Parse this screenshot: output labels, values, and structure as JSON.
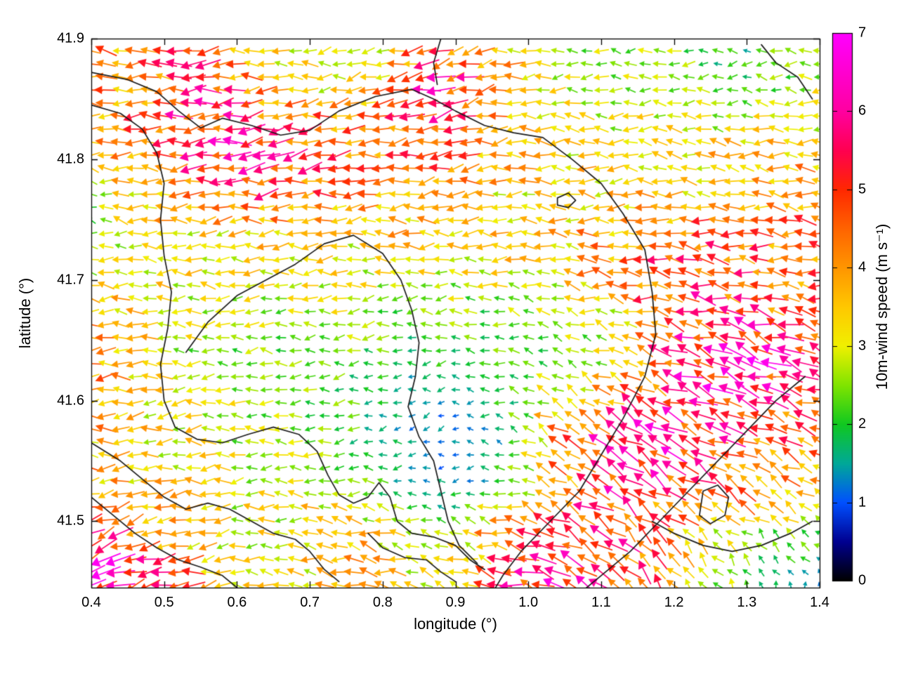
{
  "figure": {
    "xlabel": "longitude (°)",
    "ylabel": "latitude (°)",
    "colorbar_label": "10m-wind speed (m s⁻¹)"
  },
  "chart_data": {
    "type": "quiver",
    "title": "",
    "xlabel": "longitude (°)",
    "ylabel": "latitude (°)",
    "xlim": [
      0.4,
      1.4
    ],
    "ylim": [
      41.445,
      41.9
    ],
    "xticks": {
      "values": [
        0.4,
        0.5,
        0.6,
        0.7,
        0.8,
        0.9,
        1.0,
        1.1,
        1.2,
        1.3,
        1.4
      ],
      "labels": [
        "0.4",
        "0.5",
        "0.6",
        "0.7",
        "0.8",
        "0.9",
        "1.0",
        "1.1",
        "1.2",
        "1.3",
        "1.4"
      ]
    },
    "yticks": {
      "values": [
        41.5,
        41.6,
        41.7,
        41.8,
        41.9
      ],
      "labels": [
        "41.5",
        "41.6",
        "41.7",
        "41.8",
        "41.9"
      ]
    },
    "grid_visible": false,
    "legend": "none",
    "colorbar": {
      "label": "10m-wind speed (m s⁻¹)",
      "range": [
        0,
        7
      ],
      "tick_values": [
        0,
        1,
        2,
        3,
        4,
        5,
        6,
        7
      ],
      "tick_labels": [
        "0",
        "1",
        "2",
        "3",
        "4",
        "5",
        "6",
        "7"
      ],
      "position": "right"
    },
    "colormap_stops": [
      [
        0.0,
        "#000000"
      ],
      [
        0.5,
        "#000090"
      ],
      [
        1.0,
        "#0050ff"
      ],
      [
        1.5,
        "#00a898"
      ],
      [
        2.0,
        "#10c820"
      ],
      [
        2.5,
        "#80e400"
      ],
      [
        3.0,
        "#f0f000"
      ],
      [
        3.5,
        "#ffc800"
      ],
      [
        4.0,
        "#ff9600"
      ],
      [
        4.5,
        "#ff6400"
      ],
      [
        5.0,
        "#ff2800"
      ],
      [
        5.5,
        "#ff0050"
      ],
      [
        6.0,
        "#ff00a0"
      ],
      [
        7.0,
        "#ff00ff"
      ]
    ],
    "vector_grid": {
      "lon_start": 0.4,
      "lon_step": 0.02,
      "lon_count": 51,
      "lat_start": 41.447,
      "lat_step": 0.0108,
      "lat_count": 42
    },
    "wind_features_format": "[lon, lat, u_east_ms, v_north_ms]",
    "wind_features": [
      [
        0.44,
        41.88,
        -4.0,
        0.3
      ],
      [
        0.55,
        41.86,
        -5.2,
        -0.5
      ],
      [
        0.66,
        41.88,
        -3.2,
        0.0
      ],
      [
        0.75,
        41.895,
        -0.9,
        -0.3
      ],
      [
        0.8,
        41.875,
        -3.4,
        -0.6
      ],
      [
        0.9,
        41.87,
        -5.0,
        -1.6
      ],
      [
        0.87,
        41.845,
        -6.4,
        -1.5
      ],
      [
        1.0,
        41.88,
        -3.0,
        -0.3
      ],
      [
        1.1,
        41.88,
        -2.2,
        0.3
      ],
      [
        1.22,
        41.87,
        -2.8,
        0.0
      ],
      [
        1.27,
        41.893,
        -0.8,
        -0.4
      ],
      [
        1.33,
        41.86,
        -2.4,
        0.3
      ],
      [
        0.42,
        41.83,
        -3.6,
        0.5
      ],
      [
        0.52,
        41.82,
        -5.6,
        -0.8
      ],
      [
        0.62,
        41.8,
        -6.6,
        -1.0
      ],
      [
        0.72,
        41.8,
        -5.0,
        -0.6
      ],
      [
        0.85,
        41.8,
        -4.2,
        -0.5
      ],
      [
        1.0,
        41.8,
        -3.2,
        0.0
      ],
      [
        1.15,
        41.79,
        -3.0,
        0.0
      ],
      [
        1.3,
        41.79,
        -3.4,
        0.3
      ],
      [
        0.47,
        41.78,
        -4.5,
        0.0
      ],
      [
        0.4,
        41.76,
        -1.5,
        0.8
      ],
      [
        0.405,
        41.73,
        -0.9,
        0.4
      ],
      [
        0.43,
        41.71,
        -4.2,
        0.0
      ],
      [
        0.55,
        41.74,
        -3.0,
        0.0
      ],
      [
        0.68,
        41.74,
        -3.4,
        -0.2
      ],
      [
        0.82,
        41.73,
        -3.6,
        0.0
      ],
      [
        0.95,
        41.73,
        -3.2,
        0.2
      ],
      [
        1.1,
        41.72,
        -4.0,
        0.2
      ],
      [
        1.2,
        41.71,
        -5.4,
        0.4
      ],
      [
        1.33,
        41.72,
        -4.6,
        0.6
      ],
      [
        1.38,
        41.76,
        -4.2,
        0.3
      ],
      [
        0.57,
        41.7,
        -2.8,
        0.2
      ],
      [
        0.75,
        41.69,
        -2.8,
        0.0
      ],
      [
        0.42,
        41.63,
        -4.6,
        -0.3
      ],
      [
        0.52,
        41.64,
        -2.4,
        0.2
      ],
      [
        0.62,
        41.65,
        -2.2,
        0.0
      ],
      [
        0.72,
        41.64,
        -2.3,
        -0.2
      ],
      [
        0.82,
        41.65,
        -1.8,
        -0.4
      ],
      [
        0.9,
        41.655,
        -2.2,
        0.0
      ],
      [
        0.96,
        41.62,
        -1.6,
        0.5
      ],
      [
        1.0,
        41.64,
        -2.0,
        0.8
      ],
      [
        1.1,
        41.645,
        -1.3,
        0.6
      ],
      [
        1.2,
        41.64,
        -5.5,
        2.0
      ],
      [
        1.3,
        41.62,
        -6.0,
        2.5
      ],
      [
        1.38,
        41.6,
        -4.5,
        1.5
      ],
      [
        0.4,
        41.55,
        -3.6,
        0.0
      ],
      [
        0.5,
        41.56,
        -3.2,
        0.0
      ],
      [
        0.6,
        41.57,
        -2.6,
        0.0
      ],
      [
        0.7,
        41.575,
        -2.4,
        0.2
      ],
      [
        0.78,
        41.58,
        -1.6,
        -0.3
      ],
      [
        0.86,
        41.6,
        -0.6,
        -0.7
      ],
      [
        0.92,
        41.57,
        -0.45,
        -0.7
      ],
      [
        0.88,
        41.54,
        -0.35,
        -0.55
      ],
      [
        0.97,
        41.56,
        -1.2,
        0.3
      ],
      [
        1.05,
        41.57,
        -4.6,
        3.5
      ],
      [
        1.13,
        41.56,
        -5.0,
        4.0
      ],
      [
        1.22,
        41.55,
        -5.5,
        3.0
      ],
      [
        1.32,
        41.53,
        -4.2,
        2.0
      ],
      [
        1.38,
        41.5,
        -2.2,
        1.5
      ],
      [
        0.42,
        41.47,
        -5.5,
        -3.0
      ],
      [
        0.48,
        41.44,
        -6.0,
        -2.0
      ],
      [
        0.55,
        41.5,
        -3.0,
        -0.4
      ],
      [
        0.63,
        41.47,
        -2.5,
        0.3
      ],
      [
        0.72,
        41.48,
        -3.8,
        0.5
      ],
      [
        0.8,
        41.46,
        -4.0,
        1.0
      ],
      [
        0.88,
        41.47,
        -1.5,
        0.5
      ],
      [
        0.95,
        41.47,
        -5.0,
        1.5
      ],
      [
        1.02,
        41.45,
        -6.2,
        1.2
      ],
      [
        1.1,
        41.47,
        -4.6,
        4.0
      ],
      [
        1.18,
        41.45,
        -2.2,
        4.6
      ],
      [
        1.25,
        41.5,
        -3.2,
        1.6
      ],
      [
        1.26,
        41.46,
        -1.0,
        2.0
      ],
      [
        1.33,
        41.46,
        0.2,
        1.6
      ],
      [
        1.38,
        41.44,
        0.5,
        0.9
      ]
    ],
    "coast_contours": [
      [
        [
          0.4,
          41.872
        ],
        [
          0.45,
          41.866
        ],
        [
          0.49,
          41.856
        ],
        [
          0.52,
          41.84
        ],
        [
          0.55,
          41.826
        ],
        [
          0.58,
          41.834
        ],
        [
          0.62,
          41.828
        ],
        [
          0.66,
          41.82
        ],
        [
          0.7,
          41.824
        ],
        [
          0.74,
          41.84
        ],
        [
          0.79,
          41.852
        ],
        [
          0.84,
          41.858
        ],
        [
          0.87,
          41.85
        ],
        [
          0.9,
          41.84
        ],
        [
          0.94,
          41.828
        ],
        [
          0.98,
          41.822
        ],
        [
          1.02,
          41.818
        ],
        [
          1.06,
          41.8
        ],
        [
          1.1,
          41.78
        ],
        [
          1.13,
          41.755
        ],
        [
          1.16,
          41.725
        ],
        [
          1.17,
          41.69
        ],
        [
          1.175,
          41.655
        ],
        [
          1.16,
          41.62
        ],
        [
          1.13,
          41.585
        ],
        [
          1.1,
          41.555
        ],
        [
          1.07,
          41.525
        ],
        [
          1.03,
          41.5
        ],
        [
          0.99,
          41.475
        ],
        [
          0.965,
          41.455
        ],
        [
          0.95,
          41.44
        ]
      ],
      [
        [
          0.4,
          41.845
        ],
        [
          0.44,
          41.838
        ],
        [
          0.47,
          41.825
        ],
        [
          0.49,
          41.805
        ],
        [
          0.5,
          41.78
        ],
        [
          0.495,
          41.75
        ],
        [
          0.5,
          41.72
        ],
        [
          0.51,
          41.69
        ],
        [
          0.505,
          41.66
        ],
        [
          0.495,
          41.63
        ],
        [
          0.5,
          41.6
        ],
        [
          0.515,
          41.578
        ],
        [
          0.545,
          41.568
        ],
        [
          0.58,
          41.565
        ],
        [
          0.615,
          41.572
        ],
        [
          0.65,
          41.578
        ],
        [
          0.685,
          41.572
        ],
        [
          0.71,
          41.558
        ],
        [
          0.725,
          41.538
        ],
        [
          0.74,
          41.522
        ],
        [
          0.76,
          41.515
        ],
        [
          0.78,
          41.52
        ],
        [
          0.795,
          41.532
        ],
        [
          0.81,
          41.52
        ],
        [
          0.82,
          41.5
        ],
        [
          0.84,
          41.49
        ],
        [
          0.87,
          41.487
        ],
        [
          0.9,
          41.48
        ],
        [
          0.92,
          41.468
        ],
        [
          0.94,
          41.46
        ]
      ],
      [
        [
          0.53,
          41.64
        ],
        [
          0.56,
          41.665
        ],
        [
          0.6,
          41.687
        ],
        [
          0.64,
          41.7
        ],
        [
          0.68,
          41.713
        ],
        [
          0.72,
          41.73
        ],
        [
          0.76,
          41.737
        ],
        [
          0.8,
          41.722
        ],
        [
          0.825,
          41.7
        ],
        [
          0.84,
          41.675
        ],
        [
          0.85,
          41.648
        ],
        [
          0.845,
          41.62
        ],
        [
          0.835,
          41.595
        ],
        [
          0.85,
          41.57
        ],
        [
          0.87,
          41.55
        ],
        [
          0.88,
          41.525
        ],
        [
          0.89,
          41.5
        ],
        [
          0.905,
          41.48
        ],
        [
          0.93,
          41.465
        ]
      ],
      [
        [
          1.38,
          41.62
        ],
        [
          1.34,
          41.6
        ],
        [
          1.3,
          41.575
        ],
        [
          1.26,
          41.55
        ],
        [
          1.22,
          41.525
        ],
        [
          1.18,
          41.5
        ],
        [
          1.14,
          41.475
        ],
        [
          1.1,
          41.455
        ],
        [
          1.07,
          41.44
        ]
      ],
      [
        [
          1.24,
          41.525
        ],
        [
          1.26,
          41.53
        ],
        [
          1.275,
          41.52
        ],
        [
          1.27,
          41.505
        ],
        [
          1.25,
          41.498
        ],
        [
          1.235,
          41.505
        ],
        [
          1.24,
          41.525
        ]
      ],
      [
        [
          1.04,
          41.768
        ],
        [
          1.055,
          41.772
        ],
        [
          1.065,
          41.766
        ],
        [
          1.055,
          41.76
        ],
        [
          1.04,
          41.762
        ],
        [
          1.04,
          41.768
        ]
      ],
      [
        [
          1.32,
          41.895
        ],
        [
          1.34,
          41.88
        ],
        [
          1.37,
          41.868
        ],
        [
          1.39,
          41.85
        ]
      ],
      [
        [
          0.4,
          41.565
        ],
        [
          0.44,
          41.55
        ],
        [
          0.47,
          41.535
        ],
        [
          0.5,
          41.52
        ],
        [
          0.53,
          41.51
        ],
        [
          0.56,
          41.515
        ],
        [
          0.59,
          41.51
        ],
        [
          0.62,
          41.5
        ],
        [
          0.65,
          41.49
        ],
        [
          0.68,
          41.485
        ],
        [
          0.7,
          41.475
        ],
        [
          0.72,
          41.46
        ],
        [
          0.74,
          41.45
        ]
      ],
      [
        [
          0.4,
          41.52
        ],
        [
          0.43,
          41.505
        ],
        [
          0.46,
          41.49
        ],
        [
          0.49,
          41.478
        ],
        [
          0.52,
          41.468
        ],
        [
          0.55,
          41.462
        ],
        [
          0.58,
          41.455
        ],
        [
          0.6,
          41.445
        ]
      ],
      [
        [
          0.78,
          41.49
        ],
        [
          0.8,
          41.478
        ],
        [
          0.83,
          41.47
        ],
        [
          0.86,
          41.468
        ],
        [
          0.88,
          41.458
        ],
        [
          0.9,
          41.45
        ]
      ],
      [
        [
          1.17,
          41.5
        ],
        [
          1.2,
          41.49
        ],
        [
          1.24,
          41.48
        ],
        [
          1.28,
          41.475
        ],
        [
          1.32,
          41.48
        ],
        [
          1.36,
          41.49
        ],
        [
          1.39,
          41.5
        ]
      ],
      [
        [
          0.88,
          41.9
        ],
        [
          0.87,
          41.88
        ],
        [
          0.875,
          41.862
        ]
      ]
    ]
  }
}
